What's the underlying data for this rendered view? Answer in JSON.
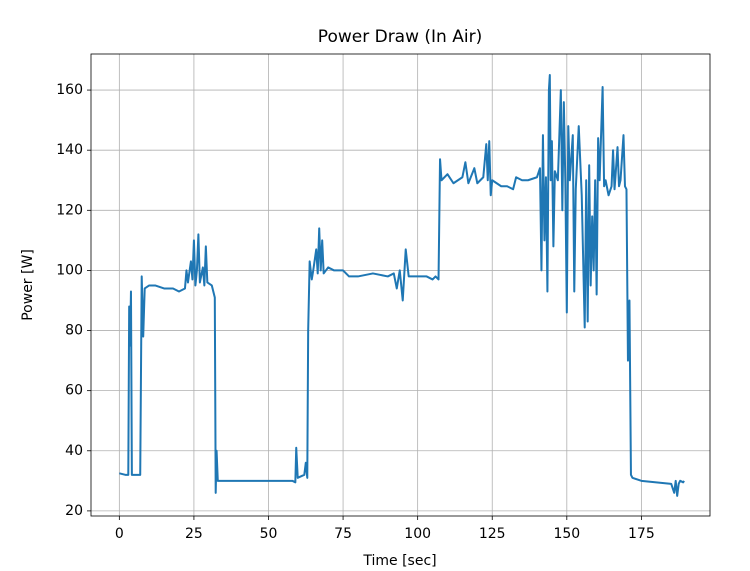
{
  "chart_data": {
    "type": "line",
    "title": "Power Draw (In Air)",
    "x_label": "Time [sec]",
    "y_label": "Power [W]",
    "xlim": [
      -9.5,
      198
    ],
    "ylim": [
      18.3,
      172
    ],
    "xticks": [
      0,
      25,
      50,
      75,
      100,
      125,
      150,
      175
    ],
    "yticks": [
      20,
      40,
      60,
      80,
      100,
      120,
      140,
      160
    ],
    "grid": true,
    "series": [
      {
        "name": "Power",
        "color": "#1f77b4",
        "x": [
          0,
          2,
          3,
          3.3,
          3.6,
          3.9,
          4.2,
          6,
          7,
          7.5,
          8,
          8.5,
          10,
          12,
          15,
          18,
          20,
          22,
          22.5,
          23,
          24,
          24.5,
          25,
          25.5,
          26,
          26.5,
          27,
          28,
          28.5,
          29,
          29.5,
          31,
          32,
          32.3,
          32.6,
          33,
          40,
          50,
          58,
          59,
          59.3,
          59.8,
          62,
          62.5,
          63,
          63.3,
          63.8,
          64.5,
          65,
          66,
          66.5,
          67,
          67.5,
          68,
          68.5,
          70,
          72,
          75,
          77,
          80,
          85,
          90,
          92,
          93,
          94,
          95,
          96,
          97,
          100,
          103,
          105,
          106,
          107,
          107.5,
          108,
          110,
          112,
          115,
          116,
          117,
          119,
          120,
          122,
          123,
          123.5,
          124,
          124.5,
          125,
          128,
          130,
          132,
          133,
          135,
          137,
          140,
          141,
          141.5,
          142,
          142.5,
          143,
          143.5,
          144,
          144.3,
          144.6,
          145,
          145.5,
          146,
          147,
          148,
          148.5,
          149,
          149.5,
          150,
          150.5,
          151,
          152,
          152.5,
          153,
          154,
          155,
          156,
          156.5,
          157,
          157.5,
          158,
          158.5,
          159,
          159.5,
          160,
          160.5,
          161,
          162,
          162.5,
          163,
          164,
          165,
          165.5,
          166,
          167,
          167.5,
          168,
          169,
          169.5,
          170,
          170.5,
          171,
          171.5,
          172,
          175,
          180,
          185,
          186,
          186.5,
          187,
          187.5,
          188,
          189,
          189.3
        ],
        "values": [
          32.5,
          32,
          32,
          88,
          75,
          93,
          32,
          32,
          32,
          98,
          78,
          94,
          95,
          95,
          94,
          94,
          93,
          94,
          100,
          96,
          103,
          97,
          110,
          95,
          100,
          112,
          96,
          101,
          95,
          108,
          96,
          95,
          91,
          26,
          40,
          30,
          30,
          30,
          30,
          29.5,
          41,
          31,
          32,
          36,
          31,
          80,
          103,
          97,
          100,
          107,
          99,
          114,
          100,
          110,
          99,
          101,
          100,
          100,
          98,
          98,
          99,
          98,
          99,
          94,
          100,
          90,
          107,
          98,
          98,
          98,
          97,
          98,
          97,
          137,
          130,
          132,
          129,
          131,
          136,
          129,
          134,
          129,
          131,
          142,
          130,
          143,
          125,
          130,
          128,
          128,
          127,
          131,
          130,
          130,
          131,
          134,
          100,
          145,
          110,
          131,
          93,
          160,
          165,
          130,
          143,
          108,
          133,
          130,
          160,
          120,
          156,
          130,
          86,
          148,
          130,
          145,
          93,
          127,
          148,
          125,
          81,
          130,
          83,
          135,
          95,
          118,
          100,
          130,
          92,
          144,
          130,
          161,
          128,
          130,
          125,
          128,
          140,
          127,
          141,
          128,
          130,
          145,
          128,
          127,
          70,
          90,
          32,
          31,
          30,
          29.5,
          29,
          26,
          30,
          25,
          29,
          30,
          29.5,
          30
        ]
      }
    ]
  }
}
